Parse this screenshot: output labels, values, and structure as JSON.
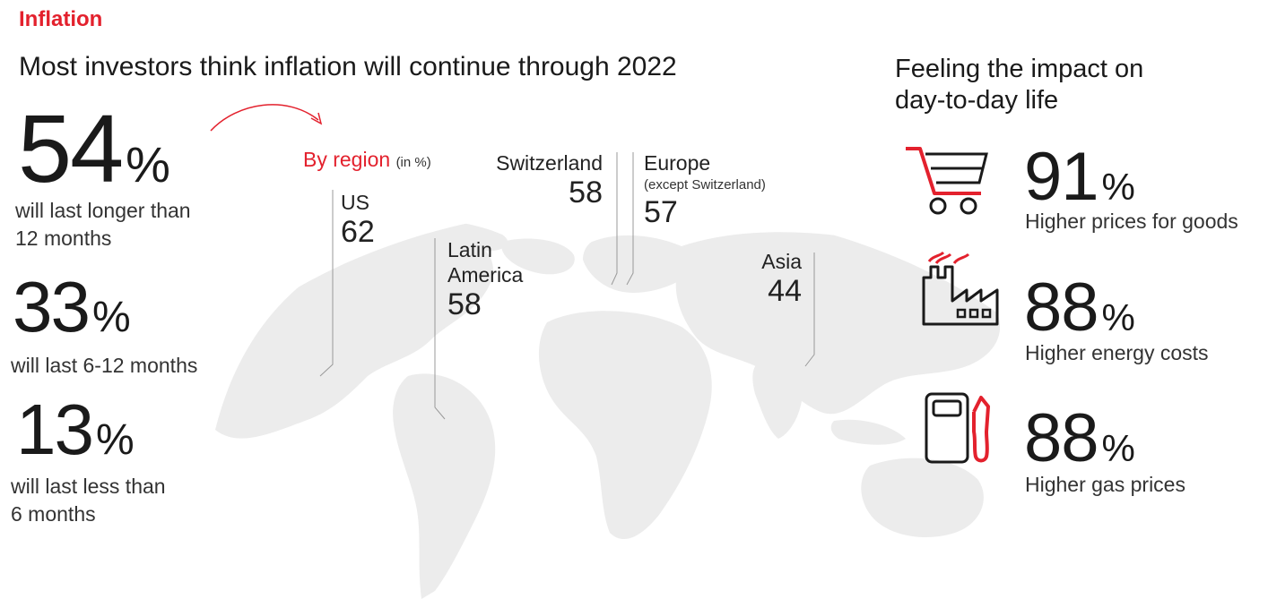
{
  "header": {
    "section_label": "Inflation",
    "headline": "Most investors think inflation will continue through 2022"
  },
  "duration": [
    {
      "value": "54",
      "unit": "%",
      "label_line1": "will last longer than",
      "label_line2": "12 months"
    },
    {
      "value": "33",
      "unit": "%",
      "label_line1": "will last 6-12 months",
      "label_line2": ""
    },
    {
      "value": "13",
      "unit": "%",
      "label_line1": "will last less than",
      "label_line2": "6 months"
    }
  ],
  "regions": {
    "title": "By region",
    "unit_note": "(in %)",
    "items": [
      {
        "name": "US",
        "value": "62"
      },
      {
        "name_line1": "Latin",
        "name_line2": "America",
        "value": "58"
      },
      {
        "name": "Switzerland",
        "value": "58"
      },
      {
        "name": "Europe",
        "subtitle": "(except Switzerland)",
        "value": "57"
      },
      {
        "name": "Asia",
        "value": "44"
      }
    ]
  },
  "impact": {
    "title_line1": "Feeling the impact on",
    "title_line2": "day-to-day life",
    "items": [
      {
        "icon": "shopping-cart-icon",
        "value": "91",
        "unit": "%",
        "label": "Higher prices for goods"
      },
      {
        "icon": "factory-icon",
        "value": "88",
        "unit": "%",
        "label": "Higher energy costs"
      },
      {
        "icon": "gas-pump-icon",
        "value": "88",
        "unit": "%",
        "label": "Higher gas prices"
      }
    ]
  },
  "colors": {
    "accent": "#e3212d",
    "map": "#ececec",
    "text": "#1a1a1a"
  }
}
